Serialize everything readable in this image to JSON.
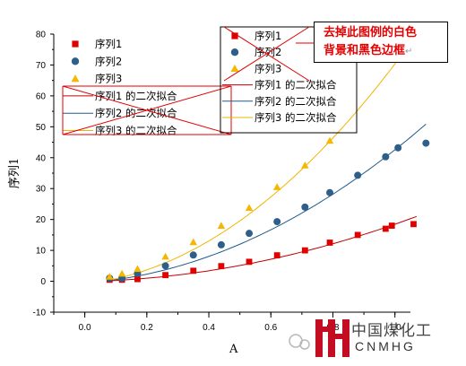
{
  "chart_data": {
    "type": "scatter",
    "title": "",
    "xlabel": "A",
    "ylabel": "序列1",
    "xlim": [
      -0.1,
      1.05
    ],
    "ylim": [
      -10,
      80
    ],
    "xticks": [
      0.0,
      0.2,
      0.4,
      0.6,
      0.8,
      1.0
    ],
    "xtick_labels": [
      "0.0",
      "0.2",
      "0.4",
      "0.6",
      "0.8",
      "1.0"
    ],
    "yticks": [
      -10,
      0,
      10,
      20,
      30,
      40,
      50,
      60,
      70,
      80
    ],
    "ytick_labels": [
      "-10",
      "0",
      "10",
      "20",
      "30",
      "40",
      "50",
      "60",
      "70",
      "80"
    ],
    "grid": false,
    "series": [
      {
        "name": "序列1",
        "marker": "square",
        "color": "#e00000",
        "x": [
          0.08,
          0.12,
          0.17,
          0.26,
          0.35,
          0.44,
          0.53,
          0.62,
          0.71,
          0.79,
          0.88,
          0.97,
          0.99,
          1.06
        ],
        "y": [
          0.5,
          0.5,
          0.7,
          2.0,
          3.4,
          4.9,
          6.3,
          8.4,
          10.0,
          12.5,
          15.0,
          17.0,
          18.0,
          18.5
        ]
      },
      {
        "name": "序列2",
        "marker": "circle",
        "color": "#2e5f8a",
        "x": [
          0.08,
          0.12,
          0.17,
          0.26,
          0.35,
          0.44,
          0.53,
          0.62,
          0.71,
          0.79,
          0.88,
          0.97,
          1.01,
          1.1
        ],
        "y": [
          1.0,
          1.0,
          2.5,
          5.0,
          8.5,
          11.8,
          15.5,
          19.3,
          24.0,
          28.7,
          34.3,
          40.3,
          43.2,
          44.7
        ]
      },
      {
        "name": "序列3",
        "marker": "triangle",
        "color": "#f5b800",
        "x": [
          0.08,
          0.12,
          0.17,
          0.26,
          0.35,
          0.44,
          0.53,
          0.62,
          0.71,
          0.79
        ],
        "y": [
          1.5,
          2.5,
          4.0,
          8.0,
          12.7,
          18.0,
          23.8,
          30.5,
          37.5,
          45.5
        ]
      }
    ],
    "fits": [
      {
        "name": "序列1 的二次拟合",
        "color": "#c00000",
        "x_range": [
          0.08,
          1.07
        ],
        "coeffs": [
          -0.13,
          2.34,
          16.26
        ]
      },
      {
        "name": "序列2 的二次拟合",
        "color": "#1f5c8c",
        "x_range": [
          0.08,
          1.1
        ],
        "coeffs": [
          -0.55,
          7.11,
          36.01
        ]
      },
      {
        "name": "序列3 的二次拟合",
        "color": "#f0b400",
        "x_range": [
          0.08,
          1.05
        ],
        "coeffs": [
          -0.82,
          10.41,
          60.73
        ]
      }
    ],
    "legend_main": {
      "placement": "top-left",
      "items": [
        "序列1",
        "序列2",
        "序列3",
        "序列1 的二次拟合",
        "序列2 的二次拟合",
        "序列3 的二次拟合"
      ]
    },
    "legend_edited": {
      "placement": "top-right",
      "items": [
        "序列1",
        "序列2",
        "序列3",
        "序列1 的二次拟合",
        "序列2 的二次拟合",
        "序列3 的二次拟合"
      ]
    },
    "annotation": {
      "line1": "去掉此图例的白色",
      "line2": "背景和黑色边框",
      "mark": "↵"
    }
  },
  "watermark": {
    "name": "中国煤化工",
    "sub": "CNMHG"
  }
}
